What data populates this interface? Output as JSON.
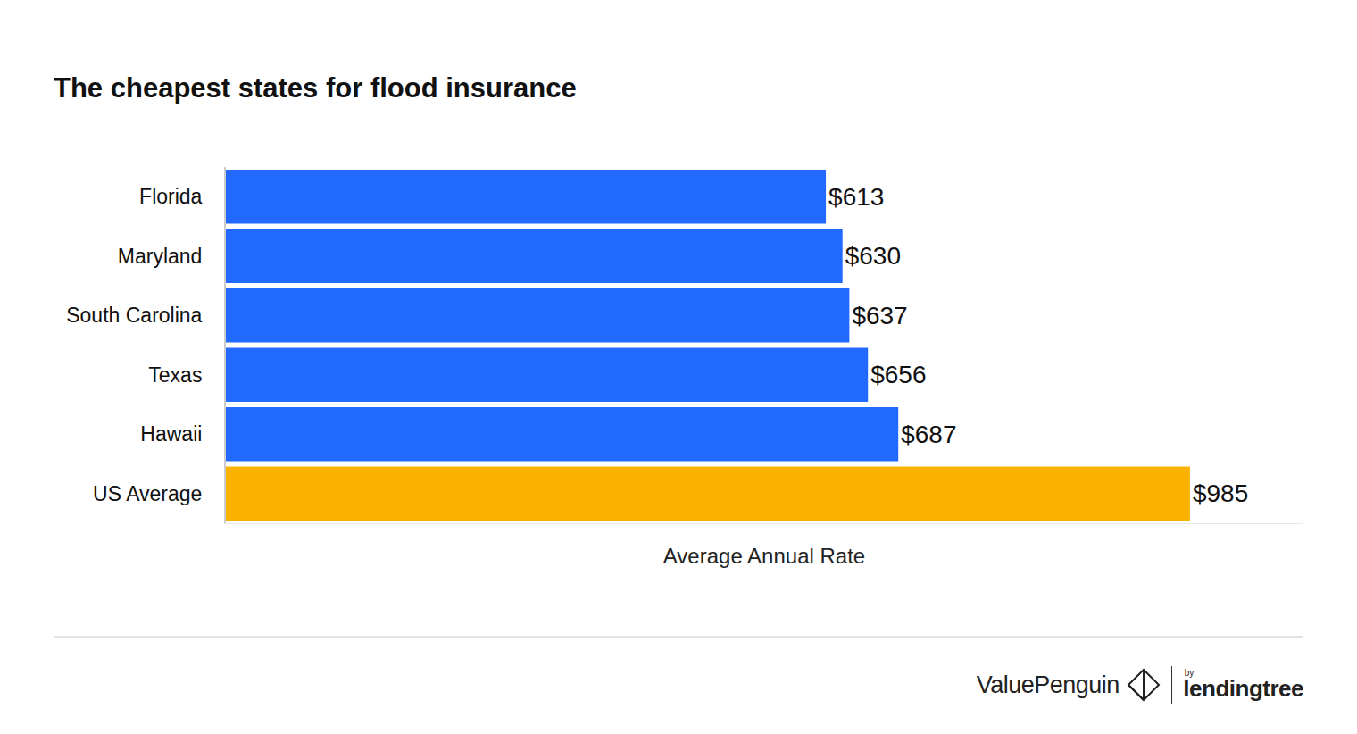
{
  "chart_data": {
    "type": "bar",
    "orientation": "horizontal",
    "title": "The cheapest states for flood insurance",
    "x_label": "Average Annual Rate",
    "categories": [
      "Florida",
      "Maryland",
      "South Carolina",
      "Texas",
      "Hawaii",
      "US Average"
    ],
    "values": [
      613,
      630,
      637,
      656,
      687,
      985
    ],
    "value_labels": [
      "$613",
      "$630",
      "$637",
      "$656",
      "$687",
      "$985"
    ],
    "colors": [
      "#2169ff",
      "#2169ff",
      "#2169ff",
      "#2169ff",
      "#2169ff",
      "#f9b200"
    ],
    "xlim": [
      0,
      1100
    ],
    "xticks": [],
    "data_labels": true,
    "tick_labels": "y",
    "grid": false,
    "annotations": [
      "ValuePenguin",
      "by",
      "lendingtree"
    ]
  }
}
